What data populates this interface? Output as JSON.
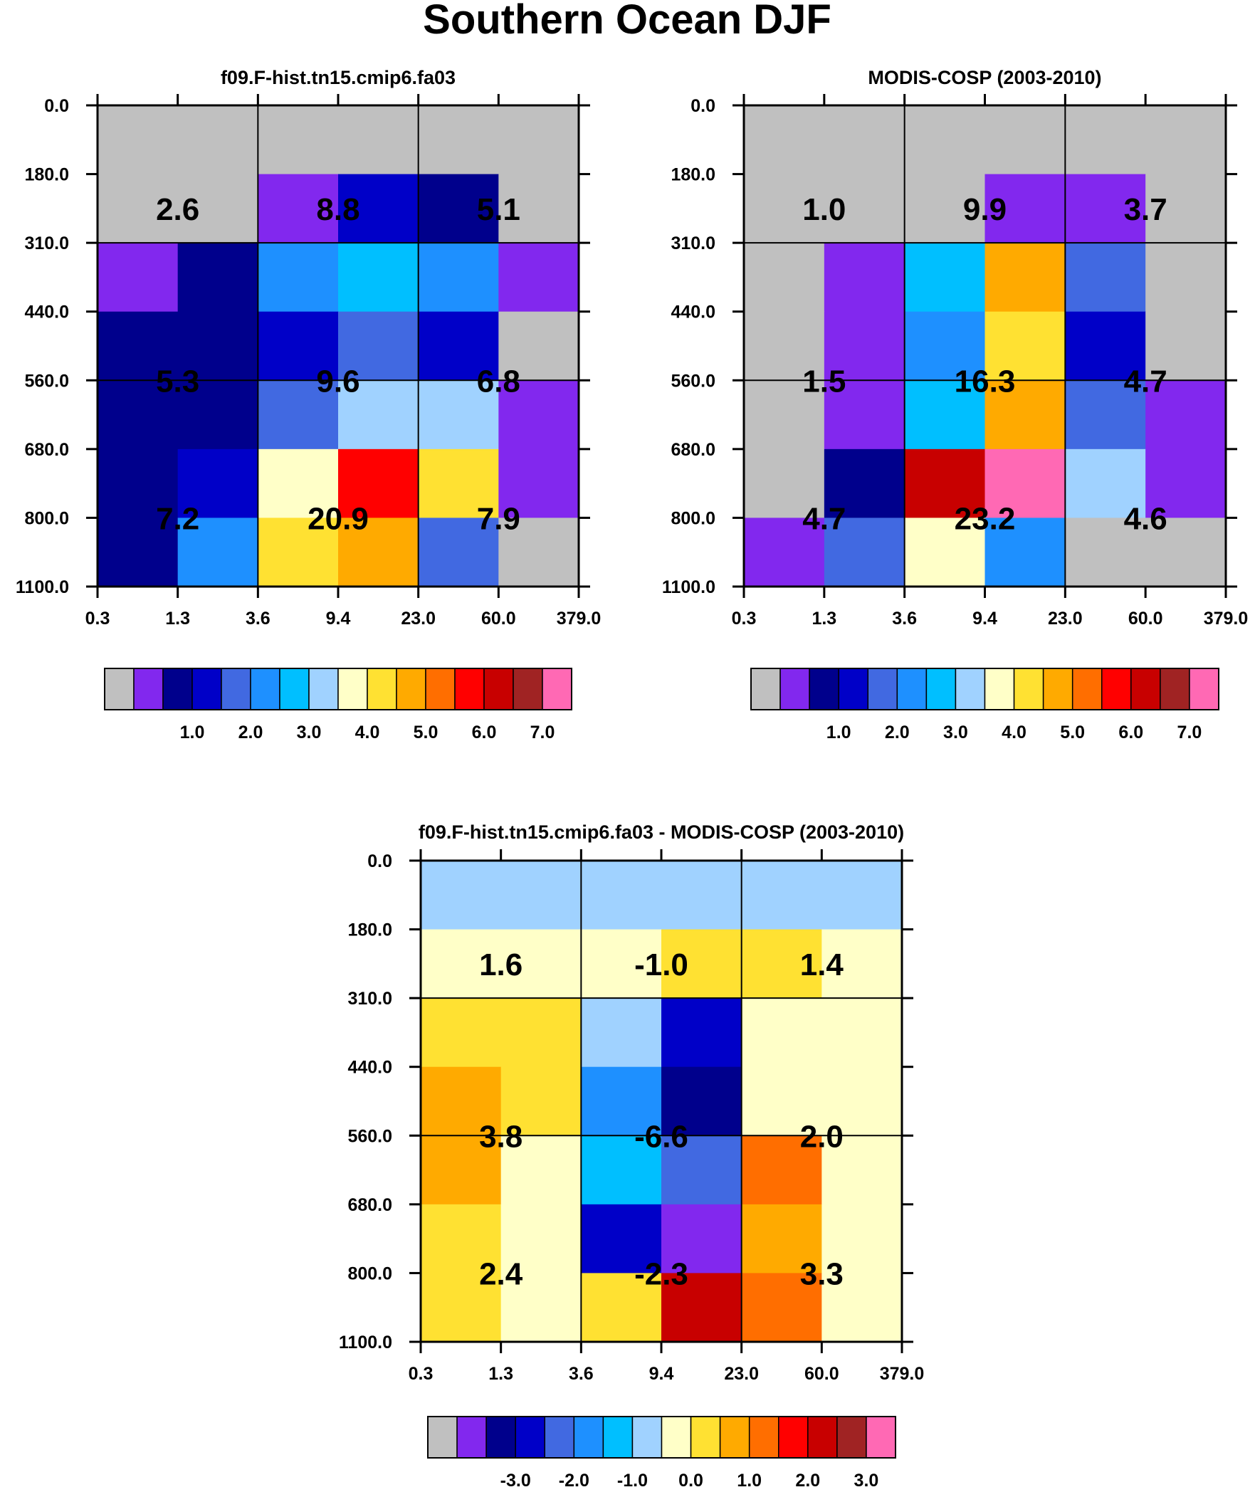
{
  "figure_title": "Southern Ocean DJF",
  "colors": {
    "palette": [
      "#c0c0c0",
      "#8228ee",
      "#00008c",
      "#0000c8",
      "#4169e1",
      "#1e90ff",
      "#00bfff",
      "#a0d2ff",
      "#ffffc8",
      "#ffe132",
      "#ffaa00",
      "#ff6e00",
      "#ff0000",
      "#c80000",
      "#a02323",
      "#ff69b4"
    ],
    "grid_line": "#000000",
    "text": "#000000"
  },
  "chart_data": [
    {
      "type": "heatmap",
      "title": "f09.F-hist.tn15.cmip6.fa03",
      "x_tick_labels": [
        "0.3",
        "1.3",
        "3.6",
        "9.4",
        "23.0",
        "60.0",
        "379.0"
      ],
      "y_tick_labels": [
        "0.0",
        "180.0",
        "310.0",
        "440.0",
        "560.0",
        "680.0",
        "800.0",
        "1100.0"
      ],
      "color_index_grid": [
        [
          0,
          0,
          0,
          0,
          0,
          0
        ],
        [
          0,
          0,
          1,
          3,
          2,
          0
        ],
        [
          1,
          2,
          5,
          6,
          5,
          1
        ],
        [
          2,
          2,
          3,
          4,
          3,
          0
        ],
        [
          2,
          2,
          4,
          7,
          7,
          1
        ],
        [
          2,
          3,
          8,
          12,
          9,
          1
        ],
        [
          2,
          5,
          9,
          10,
          4,
          0
        ]
      ],
      "box_values": [
        [
          "2.6",
          "8.8",
          "5.1"
        ],
        [
          "5.3",
          "9.6",
          "6.8"
        ],
        [
          "7.2",
          "20.9",
          "7.9"
        ]
      ],
      "colorbar": {
        "colors": [
          0,
          1,
          2,
          3,
          4,
          5,
          6,
          7,
          8,
          9,
          10,
          11,
          12,
          13,
          14,
          15
        ],
        "labels": [
          "1.0",
          "2.0",
          "3.0",
          "4.0",
          "5.0",
          "6.0",
          "7.0"
        ]
      }
    },
    {
      "type": "heatmap",
      "title": "MODIS-COSP (2003-2010)",
      "x_tick_labels": [
        "0.3",
        "1.3",
        "3.6",
        "9.4",
        "23.0",
        "60.0",
        "379.0"
      ],
      "y_tick_labels": [
        "0.0",
        "180.0",
        "310.0",
        "440.0",
        "560.0",
        "680.0",
        "800.0",
        "1100.0"
      ],
      "color_index_grid": [
        [
          0,
          0,
          0,
          0,
          0,
          0
        ],
        [
          0,
          0,
          0,
          1,
          1,
          0
        ],
        [
          0,
          1,
          6,
          10,
          4,
          0
        ],
        [
          0,
          1,
          5,
          9,
          3,
          0
        ],
        [
          0,
          1,
          6,
          10,
          4,
          1
        ],
        [
          0,
          2,
          13,
          15,
          7,
          1
        ],
        [
          1,
          4,
          8,
          5,
          0,
          0
        ]
      ],
      "box_values": [
        [
          "1.0",
          "9.9",
          "3.7"
        ],
        [
          "1.5",
          "16.3",
          "4.7"
        ],
        [
          "4.7",
          "23.2",
          "4.6"
        ]
      ],
      "colorbar": {
        "colors": [
          0,
          1,
          2,
          3,
          4,
          5,
          6,
          7,
          8,
          9,
          10,
          11,
          12,
          13,
          14,
          15
        ],
        "labels": [
          "1.0",
          "2.0",
          "3.0",
          "4.0",
          "5.0",
          "6.0",
          "7.0"
        ]
      }
    },
    {
      "type": "heatmap",
      "title": "f09.F-hist.tn15.cmip6.fa03 - MODIS-COSP (2003-2010)",
      "x_tick_labels": [
        "0.3",
        "1.3",
        "3.6",
        "9.4",
        "23.0",
        "60.0",
        "379.0"
      ],
      "y_tick_labels": [
        "0.0",
        "180.0",
        "310.0",
        "440.0",
        "560.0",
        "680.0",
        "800.0",
        "1100.0"
      ],
      "color_index_grid": [
        [
          7,
          7,
          7,
          7,
          7,
          7
        ],
        [
          8,
          8,
          8,
          9,
          9,
          8
        ],
        [
          9,
          9,
          7,
          3,
          8,
          8
        ],
        [
          10,
          9,
          5,
          2,
          8,
          8
        ],
        [
          10,
          8,
          6,
          4,
          11,
          8
        ],
        [
          9,
          8,
          3,
          1,
          10,
          8
        ],
        [
          9,
          8,
          9,
          13,
          11,
          8
        ]
      ],
      "box_values": [
        [
          "1.6",
          "-1.0",
          "1.4"
        ],
        [
          "3.8",
          "-6.6",
          "2.0"
        ],
        [
          "2.4",
          "-2.3",
          "3.3"
        ]
      ],
      "colorbar": {
        "colors": [
          0,
          1,
          2,
          3,
          4,
          5,
          6,
          7,
          8,
          9,
          10,
          11,
          12,
          13,
          14,
          15
        ],
        "labels": [
          "-3.0",
          "-2.0",
          "-1.0",
          "0.0",
          "1.0",
          "2.0",
          "3.0"
        ]
      }
    }
  ]
}
